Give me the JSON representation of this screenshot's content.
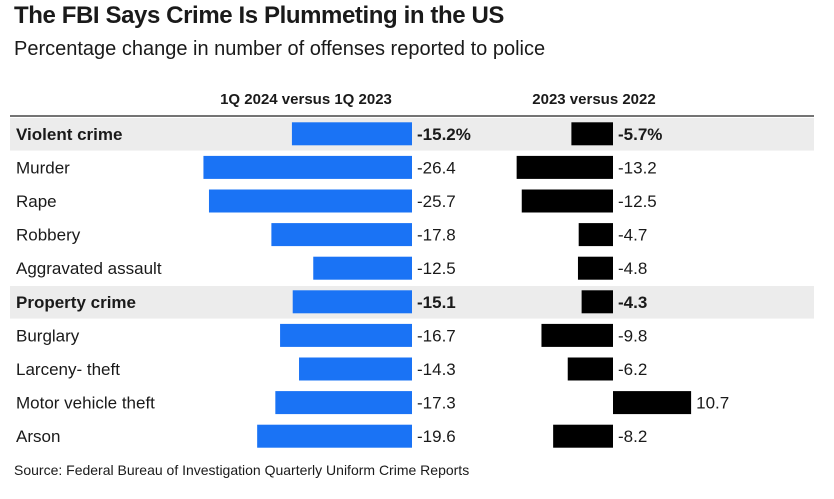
{
  "title": "The FBI Says Crime Is Plummeting in the US",
  "subtitle": "Percentage change in number of offenses reported to police",
  "source": "Source: Federal Bureau of Investigation Quarterly Uniform Crime Reports",
  "colors": {
    "series1": "#1a73f5",
    "series2": "#000000",
    "highlight_row": "#ececec"
  },
  "chart_data": {
    "type": "bar",
    "orientation": "horizontal",
    "categories": [
      "Violent crime",
      "Murder",
      "Rape",
      "Robbery",
      "Aggravated assault",
      "Property crime",
      "Burglary",
      "Larceny- theft",
      "Motor vehicle theft",
      "Arson"
    ],
    "highlighted_categories": [
      "Violent crime",
      "Property crime"
    ],
    "series": [
      {
        "name": "1Q 2024 versus 1Q 2023",
        "values": [
          -15.2,
          -26.4,
          -25.7,
          -17.8,
          -12.5,
          -15.1,
          -16.7,
          -14.3,
          -17.3,
          -19.6
        ],
        "labels": [
          "-15.2%",
          "-26.4",
          "-25.7",
          "-17.8",
          "-12.5",
          "-15.1",
          "-16.7",
          "-14.3",
          "-17.3",
          "-19.6"
        ]
      },
      {
        "name": "2023 versus 2022",
        "values": [
          -5.7,
          -13.2,
          -12.5,
          -4.7,
          -4.8,
          -4.3,
          -9.8,
          -6.2,
          10.7,
          -8.2
        ],
        "labels": [
          "-5.7%",
          "-13.2",
          "-12.5",
          "-4.7",
          "-4.8",
          "-4.3",
          "-9.8",
          "-6.2",
          "10.7",
          "-8.2"
        ]
      }
    ],
    "grid": false,
    "legend": "column headers"
  }
}
